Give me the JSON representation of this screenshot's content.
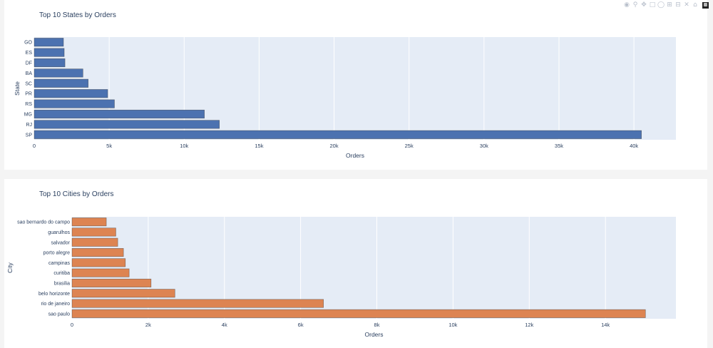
{
  "toolbar": {
    "icons": [
      "camera-icon",
      "zoom-icon",
      "pan-icon",
      "box-select-icon",
      "lasso-icon",
      "zoom-in-icon",
      "zoom-out-icon",
      "autoscale-icon",
      "home-icon",
      "plotly-logo"
    ]
  },
  "chart_data": [
    {
      "type": "bar",
      "orientation": "horizontal",
      "title": "Top 10 States by Orders",
      "xlabel": "Orders",
      "ylabel": "State",
      "categories": [
        "SP",
        "RJ",
        "MG",
        "RS",
        "PR",
        "SC",
        "BA",
        "DF",
        "ES",
        "GO"
      ],
      "values": [
        40500,
        12350,
        11350,
        5350,
        4900,
        3600,
        3250,
        2050,
        2000,
        1950
      ],
      "xlim": [
        0,
        42800
      ],
      "xticks": [
        0,
        5000,
        10000,
        15000,
        20000,
        25000,
        30000,
        35000,
        40000
      ],
      "xtick_labels": [
        "0",
        "5k",
        "10k",
        "15k",
        "20k",
        "25k",
        "30k",
        "35k",
        "40k"
      ],
      "color": "#4c72b0",
      "plot_bg": "#e5ecf6",
      "grid": true
    },
    {
      "type": "bar",
      "orientation": "horizontal",
      "title": "Top 10 Cities by Orders",
      "xlabel": "Orders",
      "ylabel": "City",
      "categories": [
        "sao paulo",
        "rio de janeiro",
        "belo horizonte",
        "brasilia",
        "curitiba",
        "campinas",
        "porto alegre",
        "salvador",
        "guarulhos",
        "sao bernardo do campo"
      ],
      "values": [
        15050,
        6600,
        2700,
        2075,
        1500,
        1400,
        1350,
        1200,
        1150,
        900
      ],
      "xlim": [
        0,
        15850
      ],
      "xticks": [
        0,
        2000,
        4000,
        6000,
        8000,
        10000,
        12000,
        14000
      ],
      "xtick_labels": [
        "0",
        "2k",
        "4k",
        "6k",
        "8k",
        "10k",
        "12k",
        "14k"
      ],
      "color": "#dd8452",
      "plot_bg": "#e5ecf6",
      "grid": true
    }
  ]
}
